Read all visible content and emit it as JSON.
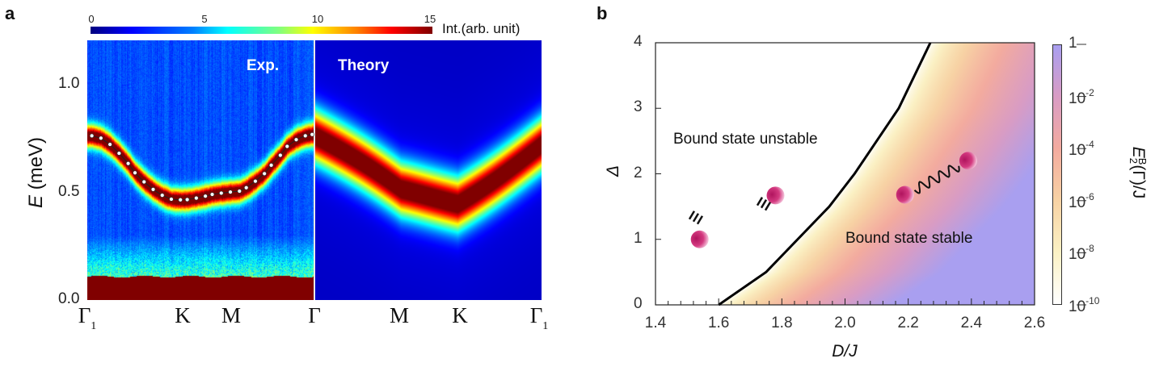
{
  "panel_a": {
    "letter": "a",
    "colorbar": {
      "ticks": [
        "0",
        "5",
        "10",
        "15"
      ],
      "label": "Int.(arb. unit)",
      "range": [
        0,
        15
      ],
      "colormap": "jet"
    },
    "ylabel_var": "E",
    "ylabel_unit": " (meV)",
    "yticks": [
      "1.0",
      "0.5",
      "0.0"
    ],
    "xticks": [
      {
        "main": "Γ",
        "sub": "1"
      },
      {
        "main": "K",
        "sub": ""
      },
      {
        "main": "M",
        "sub": ""
      },
      {
        "main": "Γ",
        "sub": ""
      },
      {
        "main": "M",
        "sub": ""
      },
      {
        "main": "K",
        "sub": ""
      },
      {
        "main": "Γ",
        "sub": "1"
      }
    ],
    "exp_label": "Exp.",
    "theory_label": "Theory"
  },
  "panel_b": {
    "letter": "b",
    "xlabel": "D/J",
    "ylabel": "Δ",
    "xticks": [
      "1.4",
      "1.6",
      "1.8",
      "2.0",
      "2.2",
      "2.4",
      "2.6"
    ],
    "yticks": [
      "0",
      "1",
      "2",
      "3",
      "4"
    ],
    "unstable_label": "Bound state unstable",
    "stable_label": "Bound state stable",
    "colorbar": {
      "ticks": [
        {
          "base": "1",
          "exp": ""
        },
        {
          "base": "10",
          "exp": "-2"
        },
        {
          "base": "10",
          "exp": "-4"
        },
        {
          "base": "10",
          "exp": "-6"
        },
        {
          "base": "10",
          "exp": "-8"
        },
        {
          "base": "10",
          "exp": "-10"
        }
      ],
      "label_main": "E",
      "label_sup": "B",
      "label_sub": "2",
      "label_rest": "(Γ)/J",
      "colors": [
        "#ffffff",
        "#fbf1c4",
        "#f7d2a4",
        "#f3ab9f",
        "#d99cc4",
        "#a99ff0"
      ]
    }
  },
  "chart_data": [
    {
      "type": "heatmap",
      "title": "",
      "ylabel": "E (meV)",
      "ylim": [
        0,
        1.2
      ],
      "x_path": [
        "Γ1",
        "K",
        "M",
        "Γ",
        "M",
        "K",
        "Γ1"
      ],
      "colorbar_range": [
        0,
        15
      ],
      "colorbar_label": "Int.(arb. unit)",
      "panels": [
        "Exp.",
        "Theory"
      ],
      "exp_points": {
        "path_fraction_Γ1_to_Γ": [
          0.02,
          0.06,
          0.1,
          0.14,
          0.18,
          0.21,
          0.25,
          0.29,
          0.33,
          0.37,
          0.41,
          0.44,
          0.48,
          0.52,
          0.55,
          0.59,
          0.63,
          0.67,
          0.7,
          0.74,
          0.78,
          0.81,
          0.85,
          0.88,
          0.92,
          0.96,
          0.99
        ],
        "E": [
          0.759,
          0.748,
          0.719,
          0.678,
          0.631,
          0.588,
          0.546,
          0.511,
          0.484,
          0.466,
          0.463,
          0.464,
          0.471,
          0.48,
          0.488,
          0.494,
          0.499,
          0.503,
          0.519,
          0.549,
          0.584,
          0.623,
          0.669,
          0.71,
          0.741,
          0.759,
          0.765
        ]
      },
      "theory_band": {
        "points": [
          "Γ",
          "M",
          "K",
          "Γ1"
        ],
        "E": [
          0.76,
          0.5,
          0.46,
          0.72
        ]
      },
      "elastic_line_E_below": 0.11
    },
    {
      "type": "heatmap",
      "xlabel": "D/J",
      "ylabel": "Δ",
      "xlim": [
        1.4,
        2.6
      ],
      "ylim": [
        0,
        4
      ],
      "colorbar_label": "E2B(Γ)/J",
      "colorbar_scale": "log",
      "colorbar_range": [
        1e-10,
        1
      ],
      "boundary": {
        "D_over_J": [
          1.6,
          1.75,
          1.85,
          1.95,
          2.03,
          2.1,
          2.17,
          2.22,
          2.27
        ],
        "Delta": [
          0,
          0.5,
          1,
          1.5,
          2,
          2.5,
          3,
          3.5,
          4
        ]
      },
      "regions": [
        "Bound state unstable",
        "Bound state stable"
      ]
    }
  ]
}
